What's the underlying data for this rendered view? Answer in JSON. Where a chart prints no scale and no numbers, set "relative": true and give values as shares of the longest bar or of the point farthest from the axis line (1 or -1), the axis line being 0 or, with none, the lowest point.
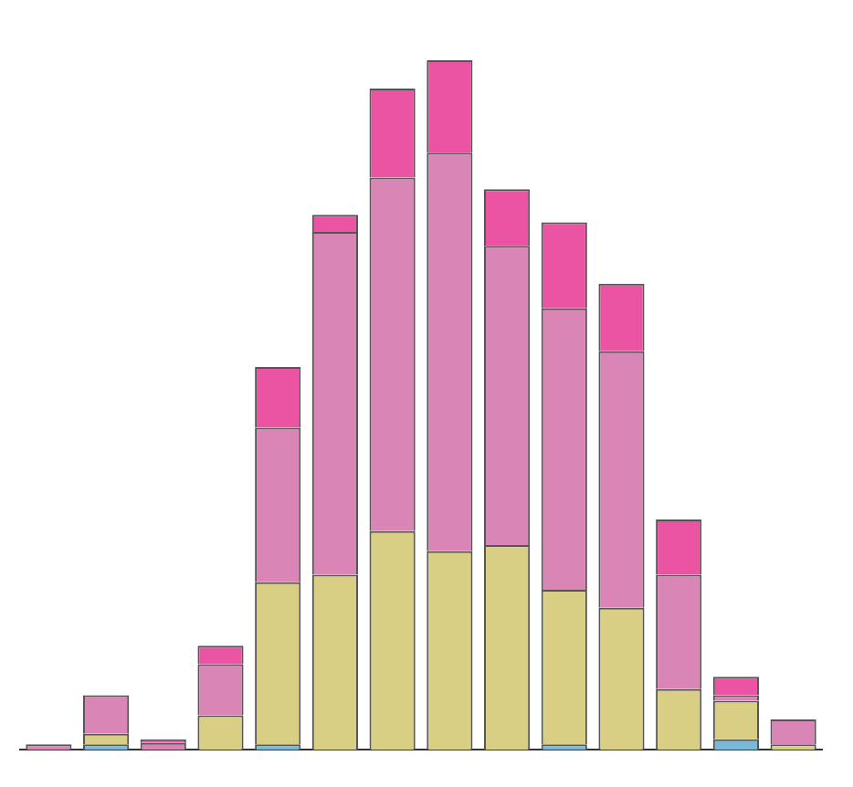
{
  "chart_data": {
    "type": "bar",
    "stacked": true,
    "relative": true,
    "legend": false,
    "categories": [
      null,
      null,
      null,
      null,
      null,
      null,
      null,
      null,
      null,
      null,
      null,
      null,
      null,
      null
    ],
    "series": [
      {
        "color": "#7ab8d8",
        "values": [
          0,
          0.008,
          0,
          0,
          0.008,
          0,
          0,
          0,
          0,
          0.008,
          0,
          0,
          0.015,
          0
        ]
      },
      {
        "color": "#d8cf84",
        "values": [
          0,
          0.015,
          0,
          0.05,
          0.235,
          0.254,
          0.317,
          0.288,
          0.297,
          0.224,
          0.206,
          0.088,
          0.056,
          0.008
        ]
      },
      {
        "color": "#d985b5",
        "values": [
          0.008,
          0.056,
          0.01,
          0.074,
          0.224,
          0.497,
          0.513,
          0.578,
          0.434,
          0.408,
          0.372,
          0.166,
          0.008,
          0.036
        ]
      },
      {
        "color": "#ea54a2",
        "values": [
          0,
          0,
          0.005,
          0.027,
          0.088,
          0.025,
          0.129,
          0.134,
          0.082,
          0.125,
          0.098,
          0.08,
          0.027,
          0
        ]
      }
    ]
  }
}
